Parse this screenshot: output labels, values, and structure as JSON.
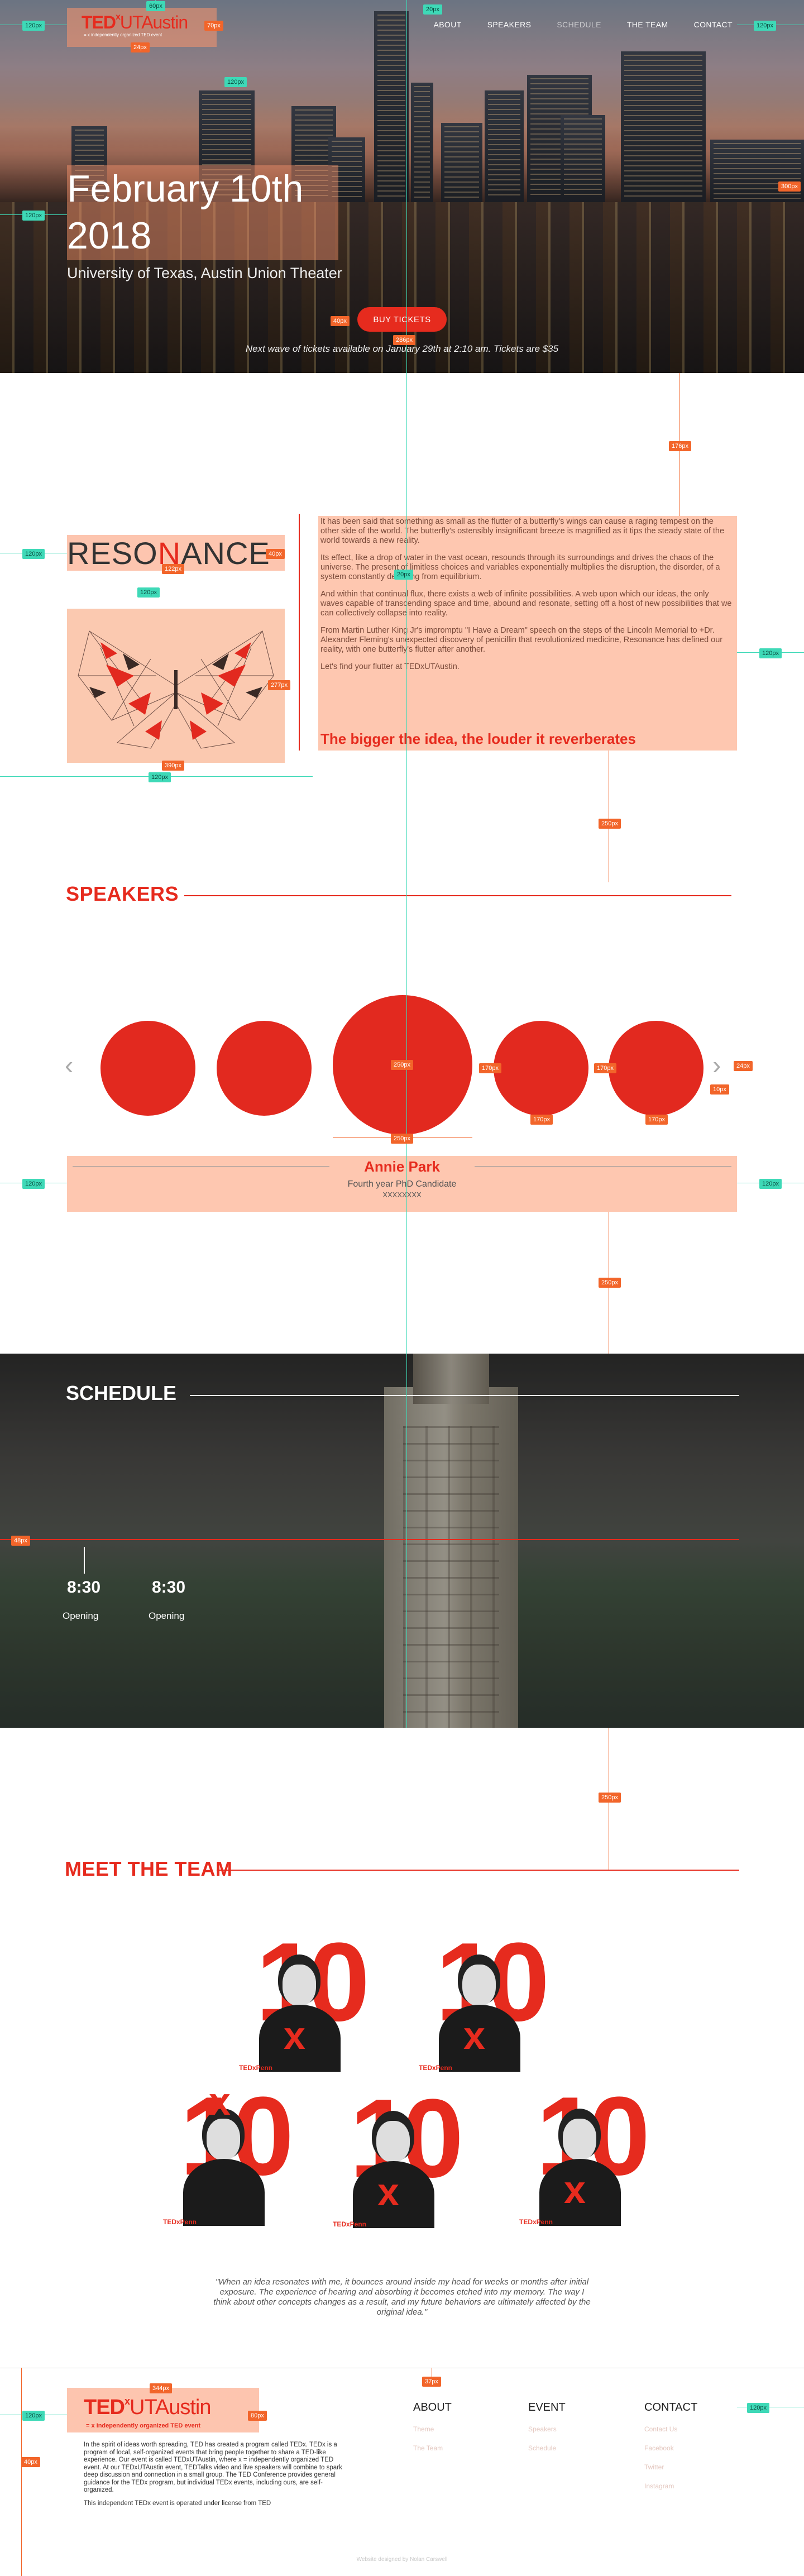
{
  "header": {
    "logo_ted": "TED",
    "logo_x": "x",
    "logo_name": "UTAustin",
    "logo_sub": "= x independently organized TED event",
    "nav": [
      {
        "label": "ABOUT"
      },
      {
        "label": "SPEAKERS"
      },
      {
        "label": "SCHEDULE"
      },
      {
        "label": "THE TEAM"
      },
      {
        "label": "CONTACT"
      }
    ]
  },
  "hero": {
    "date_line1": "February 10th",
    "date_line2": "2018",
    "venue": "University of Texas, Austin Union Theater",
    "buy_label": "BUY TICKETS",
    "wave_note": "Next wave of tickets available on January 29th at 2:10 am. Tickets are $35"
  },
  "resonance": {
    "title_a": "RESO",
    "title_b": "N",
    "title_c": "ANCE",
    "paragraphs": [
      "It has been said that something as small as the flutter of a butterfly's wings can cause a raging tempest on the other side of the world. The butterfly's ostensibly insignificant breeze is magnified as it tips the steady state of the world towards a new reality.",
      "Its effect, like a drop of water in the vast ocean, resounds through its surroundings and drives the chaos of the universe. The present of limitless choices and variables exponentially multiplies the disruption, the disorder, of a system constantly deviating from equilibrium.",
      "And within that continual flux, there exists a web of infinite possibilities. A web upon which our ideas, the only waves capable of transcending space and time, abound and resonate, setting off a host of new possibilities that we can collectively collapse into reality.",
      "From Martin Luther King Jr's impromptu \"I Have a Dream\" speech on the steps of the Lincoln Memorial to +Dr. Alexander Fleming's unexpected discovery of penicillin that revolutionized medicine, Resonance has defined our reality, with one butterfly's flutter after another.",
      "Let's find your flutter at TEDxUTAustin."
    ],
    "tagline": "The bigger the idea, the louder it reverberates"
  },
  "speakers": {
    "heading": "SPEAKERS",
    "name": "Annie Park",
    "role": "Fourth year PhD Candidate",
    "extra": "XXXXXXXX"
  },
  "schedule": {
    "heading": "SCHEDULE",
    "items": [
      {
        "time": "8:30",
        "label": "Opening"
      },
      {
        "time": "8:30",
        "label": "Opening"
      }
    ]
  },
  "team": {
    "heading": "MEET THE TEAM",
    "brand": "TEDxPenn",
    "quote": "\"When an idea resonates with me, it bounces around inside my head for weeks or months after initial exposure. The experience of hearing and absorbing it becomes etched into my memory. The way I think about other concepts changes as a result, and my future behaviors are ultimately affected by the original idea.\""
  },
  "footer": {
    "logo_ted": "TED",
    "logo_x": "x",
    "logo_name": "UTAustin",
    "logo_sub": "= x independently organized TED event",
    "about_1": "In the spirit of ideas worth spreading, TED has created a program called TEDx. TEDx is a program of local, self-organized events that bring people together to share a TED-like experience. Our event is called TEDxUTAustin, where x = independently organized TED event. At our TEDxUTAustin event, TEDTalks video and live speakers will combine to spark deep discussion and connection in a small group. The TED Conference provides general guidance for the TEDx program, but individual TEDx events, including ours, are self-organized.",
    "about_2": "This independent TEDx event is operated under license from TED",
    "cols": [
      {
        "title": "ABOUT",
        "links": [
          "Theme",
          "The Team"
        ]
      },
      {
        "title": "EVENT",
        "links": [
          "Speakers",
          "Schedule"
        ]
      },
      {
        "title": "CONTACT",
        "links": [
          "Contact Us",
          "Facebook",
          "Twitter",
          "Instagram"
        ]
      }
    ],
    "credit": "Website designed by Nolan Carswell"
  },
  "annotations": {
    "a1": "120px",
    "a2": "60px",
    "a3": "70px",
    "a4": "24px",
    "a5": "20px",
    "a6": "120px",
    "a7": "300px",
    "a8": "120px",
    "a9": "120px",
    "a10": "286px",
    "a11": "40px",
    "a12": "176px",
    "a13": "250px",
    "a14": "122px",
    "a15": "120px",
    "a16": "120px",
    "a17": "277px",
    "a18": "390px",
    "a19": "120px",
    "a20": "120px",
    "a21": "190px",
    "a22": "250px",
    "a23": "250px",
    "a24": "250px",
    "a25": "170px",
    "a26": "170px",
    "a27": "170px",
    "a28": "170px",
    "a29": "24px",
    "a30": "10px",
    "a31": "120px",
    "a32": "120px",
    "a33": "250px",
    "a34": "48px",
    "a35": "250px",
    "a36": "120px",
    "a37": "344px",
    "a38": "80px",
    "a39": "120px",
    "a40": "37px",
    "a41": "70px",
    "a42": "44px",
    "a43": "40px",
    "a44": "120px"
  },
  "colors": {
    "accent": "#e62b1e",
    "highlight": "#fec7b0",
    "teal": "#3ed9b7",
    "orange": "#f2652a"
  }
}
